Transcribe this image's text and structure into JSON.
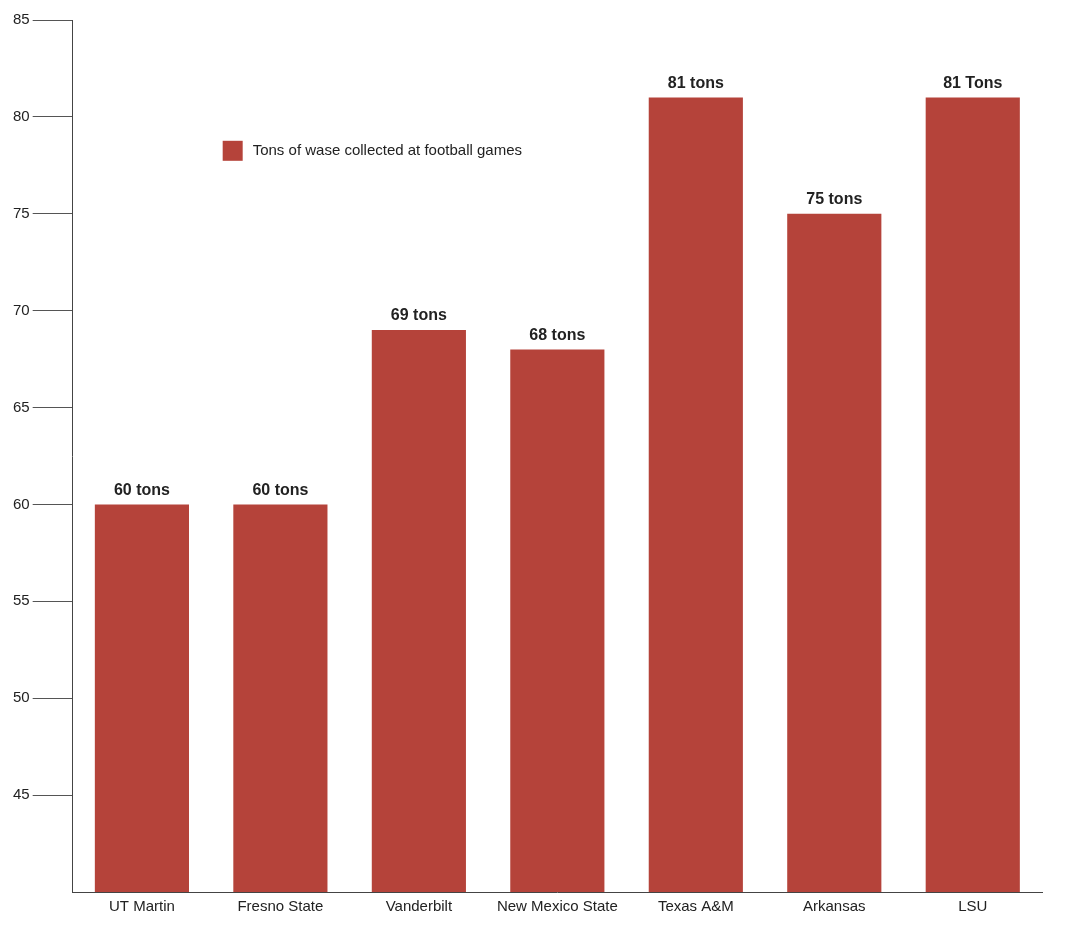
{
  "chart_data": {
    "type": "bar",
    "categories": [
      "UT Martin",
      "Fresno State",
      "Vanderbilt",
      "New Mexico State",
      "Texas A&M",
      "Arkansas",
      "LSU"
    ],
    "series": [
      {
        "name": "Tons of wase collected at football games",
        "color": "#b5433a",
        "values": [
          60,
          60,
          69,
          68,
          81,
          75,
          81
        ],
        "value_labels": [
          "60 tons",
          "60 tons",
          "69 tons",
          "68 tons",
          "81 tons",
          "75 tons",
          "81 Tons"
        ]
      }
    ],
    "ylim": [
      40,
      85
    ],
    "yticks": [
      45,
      50,
      55,
      60,
      65,
      70,
      75,
      80,
      85
    ],
    "grid": false,
    "legend": "upper left",
    "data_labels": true
  }
}
